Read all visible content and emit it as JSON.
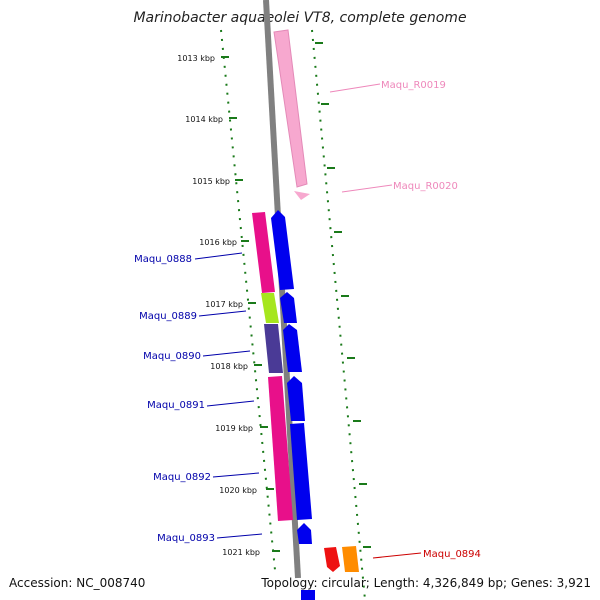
{
  "title": "Marinobacter aquaeolei VT8, complete genome",
  "footer": {
    "accession": "Accession: NC_008740",
    "summary": "Topology: circular; Length: 4,326,849 bp; Genes: 3,921"
  },
  "colors": {
    "backbone": "#808080",
    "ticks": "#1a7a1a",
    "rna_label": "#ee88bb",
    "cds_label": "#0000aa",
    "red_label": "#cc0000"
  },
  "ticks": [
    {
      "label": "1013 kbp"
    },
    {
      "label": "1014 kbp"
    },
    {
      "label": "1015 kbp"
    },
    {
      "label": "1016 kbp"
    },
    {
      "label": "1017 kbp"
    },
    {
      "label": "1018 kbp"
    },
    {
      "label": "1019 kbp"
    },
    {
      "label": "1020 kbp"
    },
    {
      "label": "1021 kbp"
    }
  ],
  "genes": [
    {
      "name": "Maqu_R0019",
      "color": "#ee88bb"
    },
    {
      "name": "Maqu_R0020",
      "color": "#ee88bb"
    },
    {
      "name": "Maqu_0888",
      "color": "#0000aa"
    },
    {
      "name": "Maqu_0889",
      "color": "#0000aa"
    },
    {
      "name": "Maqu_0890",
      "color": "#0000aa"
    },
    {
      "name": "Maqu_0891",
      "color": "#0000aa"
    },
    {
      "name": "Maqu_0892",
      "color": "#0000aa"
    },
    {
      "name": "Maqu_0893",
      "color": "#0000aa"
    },
    {
      "name": "Maqu_0894",
      "color": "#cc0000"
    }
  ]
}
